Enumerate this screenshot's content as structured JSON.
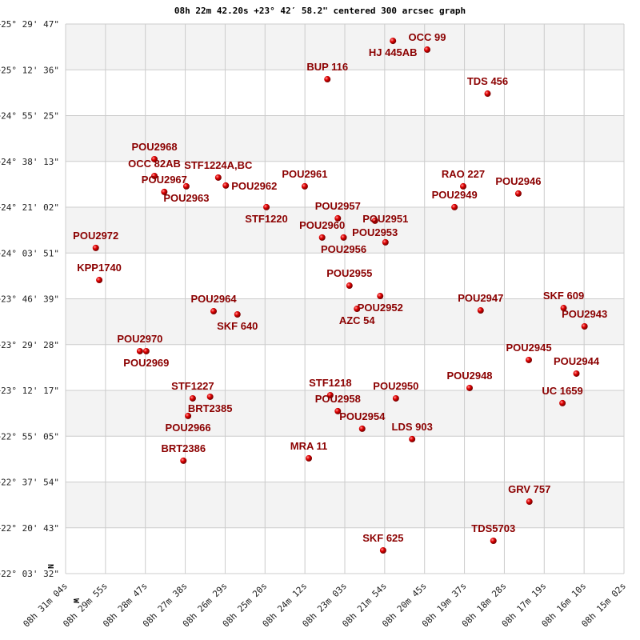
{
  "chart_data": {
    "type": "scatter",
    "title": "08h 22m 42.20s +23° 42′ 58.2\" centered 300 arcsec graph",
    "x_axis": {
      "direction": "RA decreasing to the right",
      "range": [
        "08h31m04s",
        "08h15m02s"
      ],
      "tick_labels": [
        "08h 31m 04s",
        "08h 29m 55s",
        "08h 28m 47s",
        "08h 27m 38s",
        "08h 26m 29s",
        "08h 25m 20s",
        "08h 24m 12s",
        "08h 23m 03s",
        "08h 21m 54s",
        "08h 20m 45s",
        "08h 19m 37s",
        "08h 18m 28s",
        "08h 17m 19s",
        "08h 16m 10s",
        "08h 15m 02s"
      ]
    },
    "y_axis": {
      "range_deg": [
        22.0589,
        25.4964
      ],
      "tick_labels": [
        "+25° 29' 47\"",
        "+25° 12' 36\"",
        "+24° 55' 25\"",
        "+24° 38' 13\"",
        "+24° 21' 02\"",
        "+24° 03' 51\"",
        "+23° 46' 39\"",
        "+23° 29' 28\"",
        "+23° 12' 17\"",
        "+22° 55' 05\"",
        "+22° 37' 54\"",
        "+22° 20' 43\"",
        "+22° 03' 32\""
      ]
    },
    "grid": true,
    "alternating_bands": true,
    "compass": {
      "north": "N",
      "west": "W"
    },
    "colors": {
      "point": "#dd0000",
      "label": "#8b0000",
      "band": "#f3f3f3",
      "grid": "#cccccc"
    },
    "points": [
      {
        "name": "HJ  445AB",
        "ra": "08h21m40s",
        "dec": 25.391
      },
      {
        "name": "OCC  99",
        "ra": "08h20m41s",
        "dec": 25.336
      },
      {
        "name": "BUP 116",
        "ra": "08h23m33s",
        "dec": 25.151
      },
      {
        "name": "TDS 456",
        "ra": "08h18m57s",
        "dec": 25.061
      },
      {
        "name": "POU2968",
        "ra": "08h28m31s",
        "dec": 24.651
      },
      {
        "name": "OCC  82AB",
        "ra": "08h28m31s",
        "dec": 24.546
      },
      {
        "name": "STF1224A,BC",
        "ra": "08h26m41s",
        "dec": 24.536
      },
      {
        "name": "POU2963",
        "ra": "08h27m36s",
        "dec": 24.481
      },
      {
        "name": "POU2962",
        "ra": "08h26m28s",
        "dec": 24.486
      },
      {
        "name": "POU2967",
        "ra": "08h28m14s",
        "dec": 24.446
      },
      {
        "name": "POU2961",
        "ra": "08h24m12s",
        "dec": 24.481
      },
      {
        "name": "STF1220",
        "ra": "08h25m18s",
        "dec": 24.351
      },
      {
        "name": "RAO 227",
        "ra": "08h19m39s",
        "dec": 24.481
      },
      {
        "name": "POU2946",
        "ra": "08h18m04s",
        "dec": 24.436
      },
      {
        "name": "POU2949",
        "ra": "08h19m54s",
        "dec": 24.351
      },
      {
        "name": "POU2957",
        "ra": "08h23m15s",
        "dec": 24.281
      },
      {
        "name": "POU2953",
        "ra": "08h22m11s",
        "dec": 24.266
      },
      {
        "name": "POU2960",
        "ra": "08h23m42s",
        "dec": 24.161
      },
      {
        "name": "POU2956",
        "ra": "08h23m05s",
        "dec": 24.161
      },
      {
        "name": "POU2951",
        "ra": "08h21m53s",
        "dec": 24.131
      },
      {
        "name": "POU2972",
        "ra": "08h30m12s",
        "dec": 24.096
      },
      {
        "name": "KPP1740",
        "ra": "08h30m06s",
        "dec": 23.895
      },
      {
        "name": "POU2955",
        "ra": "08h22m55s",
        "dec": 23.86
      },
      {
        "name": "POU2952",
        "ra": "08h22m02s",
        "dec": 23.795
      },
      {
        "name": "AZC  54",
        "ra": "08h22m42s",
        "dec": 23.715
      },
      {
        "name": "POU2964",
        "ra": "08h26m49s",
        "dec": 23.7
      },
      {
        "name": "SKF 640",
        "ra": "08h26m08s",
        "dec": 23.68
      },
      {
        "name": "POU2947",
        "ra": "08h19m09s",
        "dec": 23.705
      },
      {
        "name": "SKF 609",
        "ra": "08h16m46s",
        "dec": 23.72
      },
      {
        "name": "POU2943",
        "ra": "08h16m10s",
        "dec": 23.605
      },
      {
        "name": "POU2970",
        "ra": "08h28m56s",
        "dec": 23.45
      },
      {
        "name": "POU2969",
        "ra": "08h28m45s",
        "dec": 23.45
      },
      {
        "name": "POU2945",
        "ra": "08h17m46s",
        "dec": 23.395
      },
      {
        "name": "POU2944",
        "ra": "08h16m24s",
        "dec": 23.31
      },
      {
        "name": "POU2948",
        "ra": "08h19m28s",
        "dec": 23.22
      },
      {
        "name": "UC 1659",
        "ra": "08h16m48s",
        "dec": 23.125
      },
      {
        "name": "STF1227",
        "ra": "08h27m25s",
        "dec": 23.155
      },
      {
        "name": "BRT2385",
        "ra": "08h26m55s",
        "dec": 23.165
      },
      {
        "name": "STF1218",
        "ra": "08h23m28s",
        "dec": 23.175
      },
      {
        "name": "POU2950",
        "ra": "08h21m35s",
        "dec": 23.155
      },
      {
        "name": "POU2958",
        "ra": "08h23m15s",
        "dec": 23.075
      },
      {
        "name": "POU2966",
        "ra": "08h27m33s",
        "dec": 23.045
      },
      {
        "name": "POU2954",
        "ra": "08h22m33s",
        "dec": 22.965
      },
      {
        "name": "LDS 903",
        "ra": "08h21m07s",
        "dec": 22.9
      },
      {
        "name": "BRT2386",
        "ra": "08h27m41s",
        "dec": 22.765
      },
      {
        "name": "MRA  11",
        "ra": "08h24m05s",
        "dec": 22.78
      },
      {
        "name": "GRV 757",
        "ra": "08h17m45s",
        "dec": 22.509
      },
      {
        "name": "SKF 625",
        "ra": "08h21m57s",
        "dec": 22.204
      },
      {
        "name": "TDS5703",
        "ra": "08h18m47s",
        "dec": 22.264
      }
    ]
  }
}
